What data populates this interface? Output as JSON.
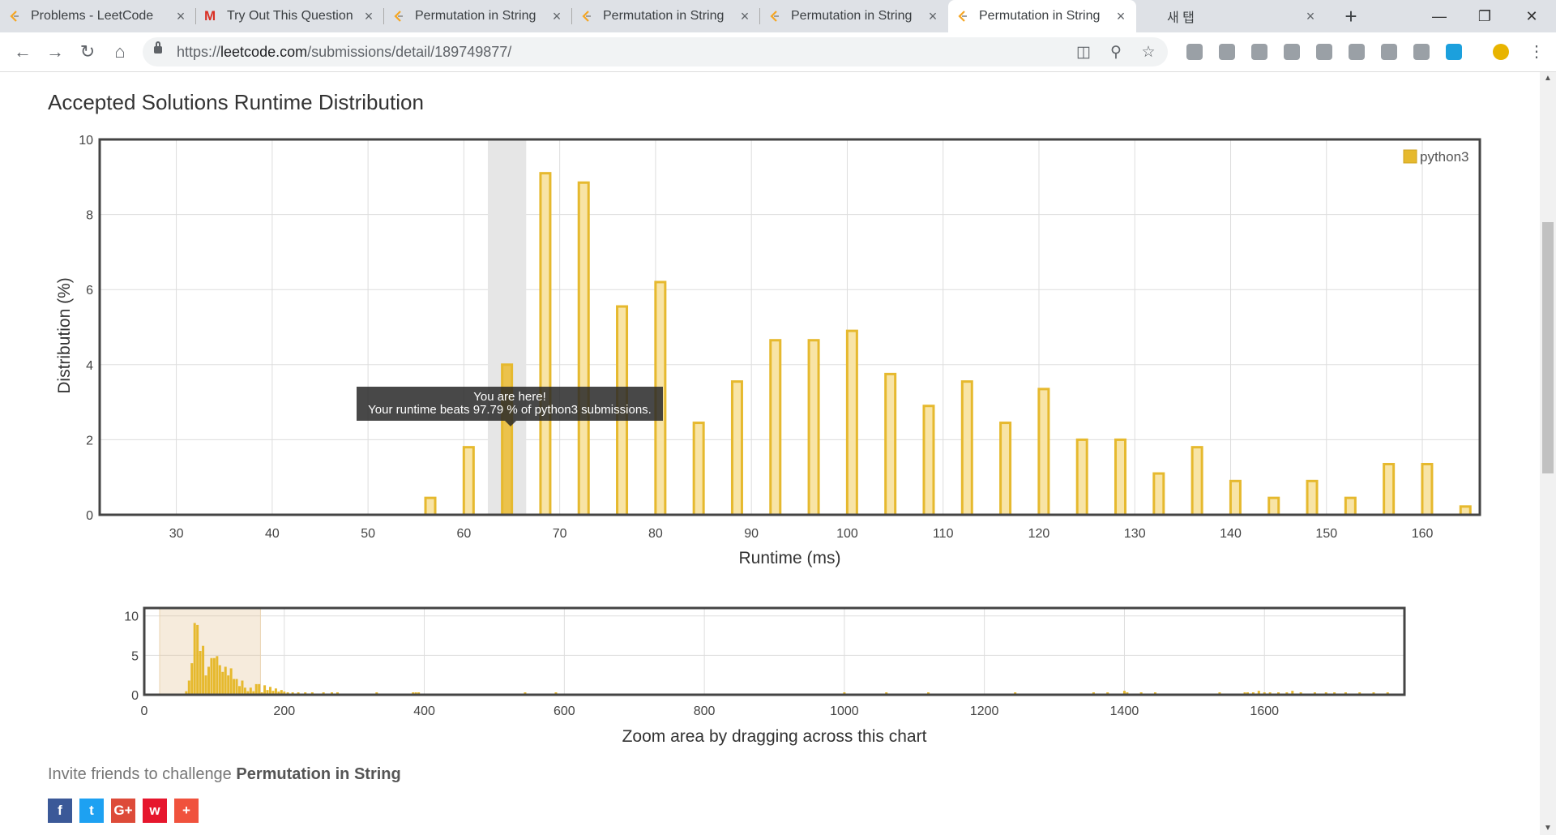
{
  "browser": {
    "tabs": [
      {
        "title": "Problems - LeetCode",
        "icon": "leetcode-icon"
      },
      {
        "title": "Try Out This Question",
        "icon": "gmail-icon"
      },
      {
        "title": "Permutation in String",
        "icon": "leetcode-icon"
      },
      {
        "title": "Permutation in String",
        "icon": "leetcode-icon"
      },
      {
        "title": "Permutation in String",
        "icon": "leetcode-icon"
      },
      {
        "title": "Permutation in String",
        "icon": "leetcode-icon",
        "active": true
      },
      {
        "title": "새 탭",
        "icon": ""
      }
    ],
    "url_scheme": "https://",
    "url_host": "leetcode.com",
    "url_path": "/submissions/detail/189749877/"
  },
  "page": {
    "title": "Accepted Solutions Runtime Distribution",
    "tooltip_line1": "You are here!",
    "tooltip_line2": "Your runtime beats 97.79 % of python3 submissions.",
    "invite_prefix": "Invite friends to challenge ",
    "invite_problem": "Permutation in String",
    "share_buttons": [
      {
        "name": "facebook",
        "label": "f",
        "color": "#3b5998"
      },
      {
        "name": "twitter",
        "label": "t",
        "color": "#1da1f2"
      },
      {
        "name": "google-plus",
        "label": "G+",
        "color": "#dd4b39"
      },
      {
        "name": "weibo",
        "label": "w",
        "color": "#e6162d"
      },
      {
        "name": "more",
        "label": "+",
        "color": "#f0523d"
      }
    ]
  },
  "chart_data": [
    {
      "type": "bar",
      "xlabel": "Runtime (ms)",
      "ylabel": "Distribution (%)",
      "xlim": [
        22,
        166
      ],
      "ylim": [
        0,
        10
      ],
      "xticks": [
        30,
        40,
        50,
        60,
        70,
        80,
        90,
        100,
        110,
        120,
        130,
        140,
        150,
        160
      ],
      "yticks": [
        0,
        2,
        4,
        6,
        8,
        10
      ],
      "grid": true,
      "legend": "top-right",
      "bar_color": "#e6b92e",
      "highlight_x": 64.5,
      "series": [
        {
          "name": "python3",
          "x": [
            56.5,
            60.5,
            64.5,
            68.5,
            72.5,
            76.5,
            80.5,
            84.5,
            88.5,
            92.5,
            96.5,
            100.5,
            104.5,
            108.5,
            112.5,
            116.5,
            120.5,
            124.5,
            128.5,
            132.5,
            136.5,
            140.5,
            144.5,
            148.5,
            152.5,
            156.5,
            160.5,
            164.5
          ],
          "values": [
            0.45,
            1.8,
            4.0,
            9.1,
            8.85,
            5.55,
            6.2,
            2.45,
            3.55,
            4.65,
            4.65,
            4.9,
            3.75,
            2.9,
            3.55,
            2.45,
            3.35,
            2.0,
            2.0,
            1.1,
            1.8,
            0.9,
            0.45,
            0.9,
            0.45,
            1.35,
            1.35,
            0.22
          ]
        }
      ]
    },
    {
      "type": "bar",
      "xlabel": "Zoom area by dragging across this chart",
      "xlim": [
        0,
        1800
      ],
      "ylim": [
        0,
        11
      ],
      "xticks": [
        0,
        200,
        400,
        600,
        800,
        1000,
        1200,
        1400,
        1600
      ],
      "yticks": [
        0,
        5,
        10
      ],
      "grid": true,
      "selection_range": [
        22,
        166
      ],
      "series": [
        {
          "name": "python3",
          "x": [
            60,
            64,
            68,
            72,
            76,
            80,
            84,
            88,
            92,
            96,
            100,
            104,
            108,
            112,
            116,
            120,
            124,
            128,
            132,
            136,
            140,
            144,
            148,
            152,
            156,
            160,
            164,
            168,
            172,
            176,
            180,
            184,
            188,
            192,
            196,
            200,
            205,
            212,
            220,
            230,
            240,
            256,
            268,
            276,
            332,
            384,
            388,
            392,
            544,
            588,
            1000,
            1060,
            1120,
            1244,
            1356,
            1376,
            1400,
            1404,
            1424,
            1444,
            1536,
            1572,
            1576,
            1584,
            1592,
            1600,
            1608,
            1620,
            1632,
            1640,
            1652,
            1672,
            1688,
            1700,
            1716,
            1736,
            1756,
            1776,
            1800
          ],
          "values": [
            0.45,
            1.8,
            4.0,
            9.1,
            8.85,
            5.55,
            6.2,
            2.45,
            3.55,
            4.65,
            4.65,
            4.9,
            3.75,
            2.9,
            3.55,
            2.45,
            3.35,
            2.0,
            2.0,
            1.1,
            1.8,
            0.9,
            0.45,
            0.9,
            0.45,
            1.35,
            1.35,
            0.22,
            1.2,
            0.6,
            1.0,
            0.5,
            0.8,
            0.4,
            0.6,
            0.4,
            0.3,
            0.3,
            0.25,
            0.2,
            0.2,
            0.3,
            0.2,
            0.2,
            0.2,
            0.2,
            0.2,
            0.2,
            0.2,
            0.2,
            0.2,
            0.2,
            0.2,
            0.2,
            0.2,
            0.2,
            0.5,
            0.3,
            0.2,
            0.2,
            0.2,
            0.2,
            0.2,
            0.2,
            0.5,
            0.2,
            0.2,
            0.2,
            0.2,
            0.5,
            0.2,
            0.2,
            0.2,
            0.2,
            0.2,
            0.2,
            0.2,
            0.2,
            0.3
          ]
        }
      ]
    }
  ]
}
